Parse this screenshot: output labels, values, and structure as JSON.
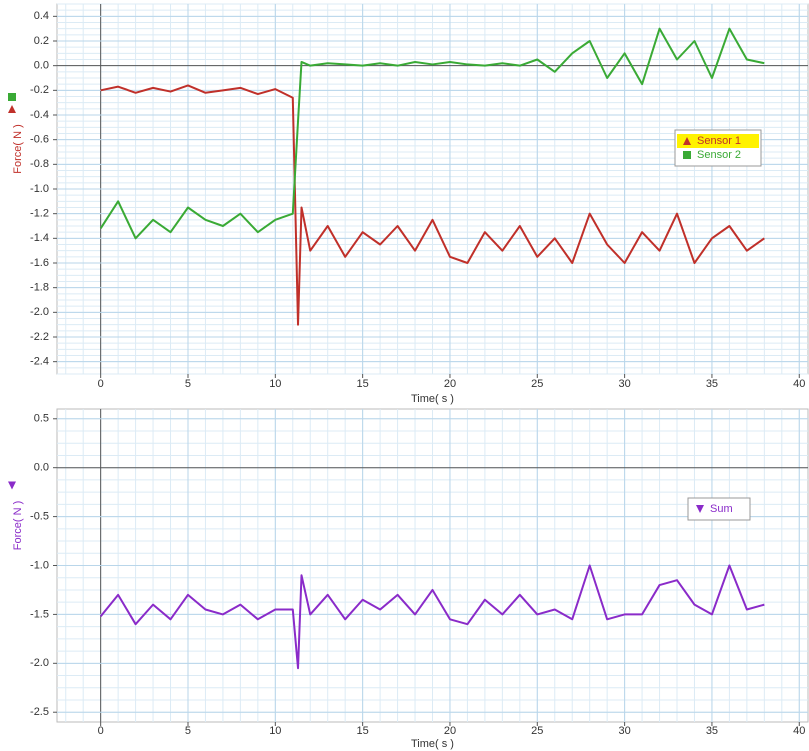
{
  "chart_data": [
    {
      "type": "line",
      "xlabel": "Time( s )",
      "ylabel": "Force( N )",
      "xlim": [
        -2.5,
        40.5
      ],
      "ylim": [
        -2.5,
        0.5
      ],
      "xticks": [
        0,
        5,
        10,
        15,
        20,
        25,
        30,
        35,
        40
      ],
      "yticks": [
        0.4,
        0.2,
        {
          "value": 0,
          "label": "0.0"
        },
        -0.2,
        -0.4,
        -0.6,
        -0.8,
        {
          "value": -1,
          "label": "-1.0"
        },
        -1.2,
        -1.4,
        -1.6,
        -1.8,
        {
          "value": -2,
          "label": "-2.0"
        },
        -2.2,
        -2.4
      ],
      "grid": true,
      "x": [
        0,
        1,
        2,
        3,
        4,
        5,
        6,
        7,
        8,
        9,
        10,
        11,
        11.3,
        11.5,
        12,
        13,
        14,
        15,
        16,
        17,
        18,
        19,
        20,
        21,
        22,
        23,
        24,
        25,
        26,
        27,
        28,
        29,
        30,
        31,
        32,
        33,
        34,
        35,
        36,
        37,
        38
      ],
      "series": [
        {
          "name": "Sensor 1",
          "color": "#c0302a",
          "marker": "triangle",
          "values": [
            -0.2,
            -0.17,
            -0.22,
            -0.18,
            -0.21,
            -0.16,
            -0.22,
            -0.2,
            -0.18,
            -0.23,
            -0.19,
            -0.26,
            -2.1,
            -1.15,
            -1.5,
            -1.3,
            -1.55,
            -1.35,
            -1.45,
            -1.3,
            -1.5,
            -1.25,
            -1.55,
            -1.6,
            -1.35,
            -1.5,
            -1.3,
            -1.55,
            -1.4,
            -1.6,
            -1.2,
            -1.45,
            -1.6,
            -1.35,
            -1.5,
            -1.2,
            -1.6,
            -1.4,
            -1.3,
            -1.5,
            -1.4
          ]
        },
        {
          "name": "Sensor 2",
          "color": "#3aaa35",
          "marker": "square",
          "values": [
            -1.32,
            -1.1,
            -1.4,
            -1.25,
            -1.35,
            -1.15,
            -1.25,
            -1.3,
            -1.2,
            -1.35,
            -1.25,
            -1.2,
            -0.45,
            0.03,
            0.0,
            0.02,
            0.01,
            0.0,
            0.02,
            0.0,
            0.03,
            0.01,
            0.03,
            0.01,
            0.0,
            0.02,
            0.0,
            0.05,
            -0.05,
            0.1,
            0.2,
            -0.1,
            0.1,
            -0.15,
            0.3,
            0.05,
            0.2,
            -0.1,
            0.3,
            0.05,
            0.02
          ]
        }
      ]
    },
    {
      "type": "line",
      "xlabel": "Time( s )",
      "ylabel": "Force( N )",
      "xlim": [
        -2.5,
        40.5
      ],
      "ylim": [
        -2.6,
        0.6
      ],
      "xticks": [
        0,
        5,
        10,
        15,
        20,
        25,
        30,
        35,
        40
      ],
      "yticks": [
        0.5,
        {
          "value": 0,
          "label": "0.0"
        },
        -0.5,
        {
          "value": -1,
          "label": "-1.0"
        },
        -1.5,
        {
          "value": -2,
          "label": "-2.0"
        },
        -2.5
      ],
      "grid": true,
      "x": [
        0,
        1,
        2,
        3,
        4,
        5,
        6,
        7,
        8,
        9,
        10,
        11,
        11.3,
        11.5,
        12,
        13,
        14,
        15,
        16,
        17,
        18,
        19,
        20,
        21,
        22,
        23,
        24,
        25,
        26,
        27,
        28,
        29,
        30,
        31,
        32,
        33,
        34,
        35,
        36,
        37,
        38
      ],
      "series": [
        {
          "name": "Sum",
          "color": "#8a2bc9",
          "marker": "triangle-down",
          "values": [
            -1.52,
            -1.3,
            -1.6,
            -1.4,
            -1.55,
            -1.3,
            -1.45,
            -1.5,
            -1.4,
            -1.55,
            -1.45,
            -1.45,
            -2.05,
            -1.1,
            -1.5,
            -1.3,
            -1.55,
            -1.35,
            -1.45,
            -1.3,
            -1.5,
            -1.25,
            -1.55,
            -1.6,
            -1.35,
            -1.5,
            -1.3,
            -1.5,
            -1.45,
            -1.55,
            -1.0,
            -1.55,
            -1.5,
            -1.5,
            -1.2,
            -1.15,
            -1.4,
            -1.5,
            -1.0,
            -1.45,
            -1.4
          ]
        }
      ]
    }
  ]
}
